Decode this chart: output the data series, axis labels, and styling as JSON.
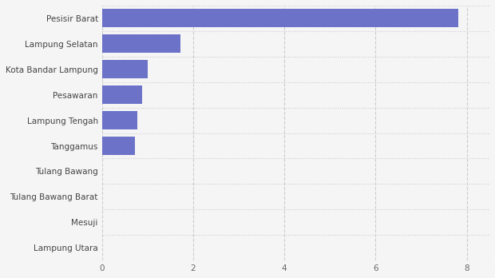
{
  "categories": [
    "Lampung Utara",
    "Mesuji",
    "Tulang Bawang Barat",
    "Tulang Bawang",
    "Tanggamus",
    "Lampung Tengah",
    "Pesawaran",
    "Kota Bandar Lampung",
    "Lampung Selatan",
    "Pesisir Barat"
  ],
  "values": [
    0.0,
    0.0,
    0.0,
    0.0,
    0.72,
    0.78,
    0.88,
    1.0,
    1.72,
    7.82
  ],
  "bar_color": "#6b72c8",
  "background_color": "#f5f5f5",
  "plot_bg_color": "#f5f5f5",
  "xlim": [
    0,
    8.5
  ],
  "xticks": [
    0,
    2,
    4,
    6,
    8
  ],
  "label_fontsize": 7.5,
  "tick_fontsize": 7.5
}
